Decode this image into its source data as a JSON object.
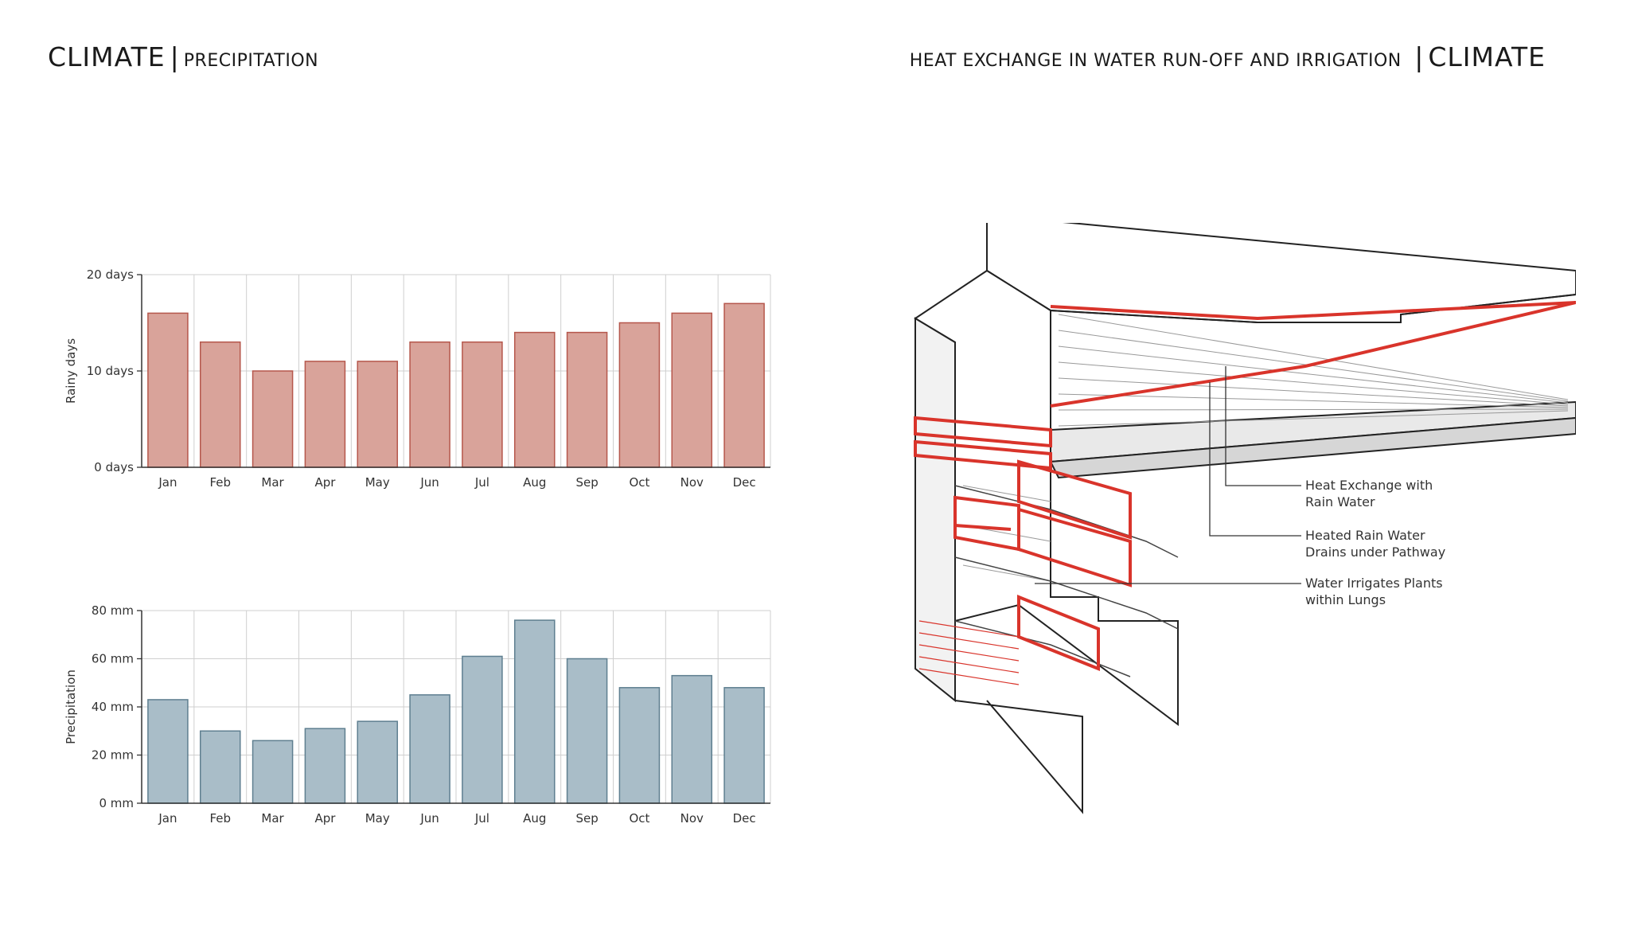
{
  "header_left": {
    "main": "CLIMATE",
    "sub": "PRECIPITATION"
  },
  "header_right": {
    "sub": "HEAT EXCHANGE IN WATER RUN-OFF AND IRRIGATION",
    "main": "CLIMATE"
  },
  "colors": {
    "rainy_fill": "#d9a39a",
    "rainy_stroke": "#b5574c",
    "precip_fill": "#a9bdc8",
    "precip_stroke": "#5f7f90",
    "diagram_accent": "#d9342b"
  },
  "chart_data": [
    {
      "type": "bar",
      "categories": [
        "Jan",
        "Feb",
        "Mar",
        "Apr",
        "May",
        "Jun",
        "Jul",
        "Aug",
        "Sep",
        "Oct",
        "Nov",
        "Dec"
      ],
      "values": [
        16,
        13,
        10,
        11,
        11,
        13,
        13,
        14,
        14,
        15,
        16,
        17
      ],
      "ylabel": "Rainy days",
      "ylim": [
        0,
        20
      ],
      "yticks": [
        0,
        10,
        20
      ],
      "ytick_labels": [
        "0 days",
        "10 days",
        "20 days"
      ],
      "grid": true
    },
    {
      "type": "bar",
      "categories": [
        "Jan",
        "Feb",
        "Mar",
        "Apr",
        "May",
        "Jun",
        "Jul",
        "Aug",
        "Sep",
        "Oct",
        "Nov",
        "Dec"
      ],
      "values": [
        43,
        30,
        26,
        31,
        34,
        45,
        61,
        76,
        60,
        48,
        53,
        48
      ],
      "ylabel": "Precipitation",
      "ylim": [
        0,
        80
      ],
      "yticks": [
        0,
        20,
        40,
        60,
        80
      ],
      "ytick_labels": [
        "0 mm",
        "20 mm",
        "40 mm",
        "60 mm",
        "80 mm"
      ],
      "grid": true
    }
  ],
  "diagram": {
    "callouts": [
      {
        "line1": "Heat Exchange with",
        "line2": "Rain Water"
      },
      {
        "line1": "Heated Rain Water",
        "line2": "Drains under Pathway"
      },
      {
        "line1": "Water Irrigates Plants",
        "line2": "within Lungs"
      }
    ]
  }
}
